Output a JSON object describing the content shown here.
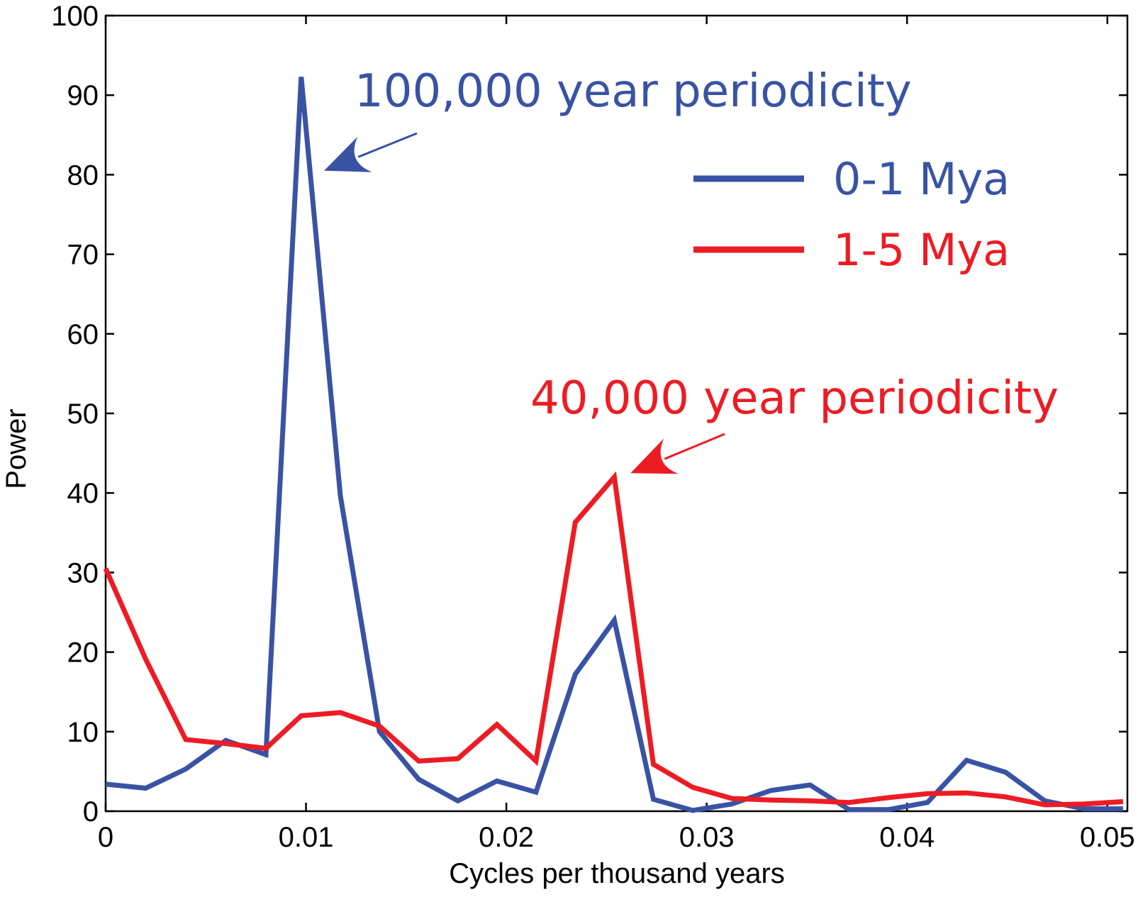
{
  "chart_data": {
    "type": "line",
    "title": "",
    "xlabel": "Cycles per thousand years",
    "ylabel": "Power",
    "xlim": [
      0,
      0.051
    ],
    "ylim": [
      0,
      100
    ],
    "x_ticks": [
      "0",
      "0.01",
      "0.02",
      "0.03",
      "0.04",
      "0.05"
    ],
    "y_ticks": [
      "0",
      "10",
      "20",
      "30",
      "40",
      "50",
      "60",
      "70",
      "80",
      "90",
      "100"
    ],
    "legend_placement": "top-right",
    "grid": false,
    "series": [
      {
        "name": "0-1 Mya",
        "color": "#3953a4",
        "x": [
          0,
          0.002,
          0.004,
          0.006,
          0.008,
          0.00976,
          0.01172,
          0.01367,
          0.01563,
          0.01758,
          0.01953,
          0.02148,
          0.02344,
          0.02539,
          0.02734,
          0.0293,
          0.03125,
          0.0332,
          0.03516,
          0.03711,
          0.03906,
          0.04102,
          0.04297,
          0.04492,
          0.04688,
          0.04883,
          0.05078
        ],
        "values": [
          3.4,
          2.9,
          5.3,
          8.9,
          7.1,
          92.3,
          39.6,
          10.0,
          4.0,
          1.3,
          3.8,
          2.4,
          17.2,
          24.0,
          1.5,
          0.1,
          0.9,
          2.6,
          3.3,
          0.2,
          0.2,
          1.1,
          6.4,
          4.9,
          1.3,
          0.3,
          0.3
        ]
      },
      {
        "name": "1-5 Mya",
        "color": "#ed1c24",
        "x": [
          0,
          0.002,
          0.004,
          0.006,
          0.008,
          0.00976,
          0.01172,
          0.01367,
          0.01563,
          0.01758,
          0.01953,
          0.02148,
          0.02344,
          0.02539,
          0.02734,
          0.0293,
          0.03125,
          0.0332,
          0.03516,
          0.03711,
          0.03906,
          0.04102,
          0.04297,
          0.04492,
          0.04688,
          0.04883,
          0.05078
        ],
        "values": [
          30.5,
          19.1,
          9.0,
          8.5,
          7.9,
          12.0,
          12.4,
          10.7,
          6.3,
          6.6,
          10.9,
          6.3,
          36.3,
          42.0,
          5.9,
          3.0,
          1.6,
          1.4,
          1.3,
          1.1,
          1.7,
          2.2,
          2.3,
          1.8,
          0.8,
          0.9,
          1.2
        ]
      }
    ],
    "annotations": [
      {
        "text": "100,000 year periodicity",
        "color": "#3953a4",
        "points_to": {
          "x": 0.0109,
          "y": 80.5
        }
      },
      {
        "text": "40,000 year periodicity",
        "color": "#ed1c24",
        "points_to": {
          "x": 0.0262,
          "y": 42.5
        }
      }
    ]
  }
}
